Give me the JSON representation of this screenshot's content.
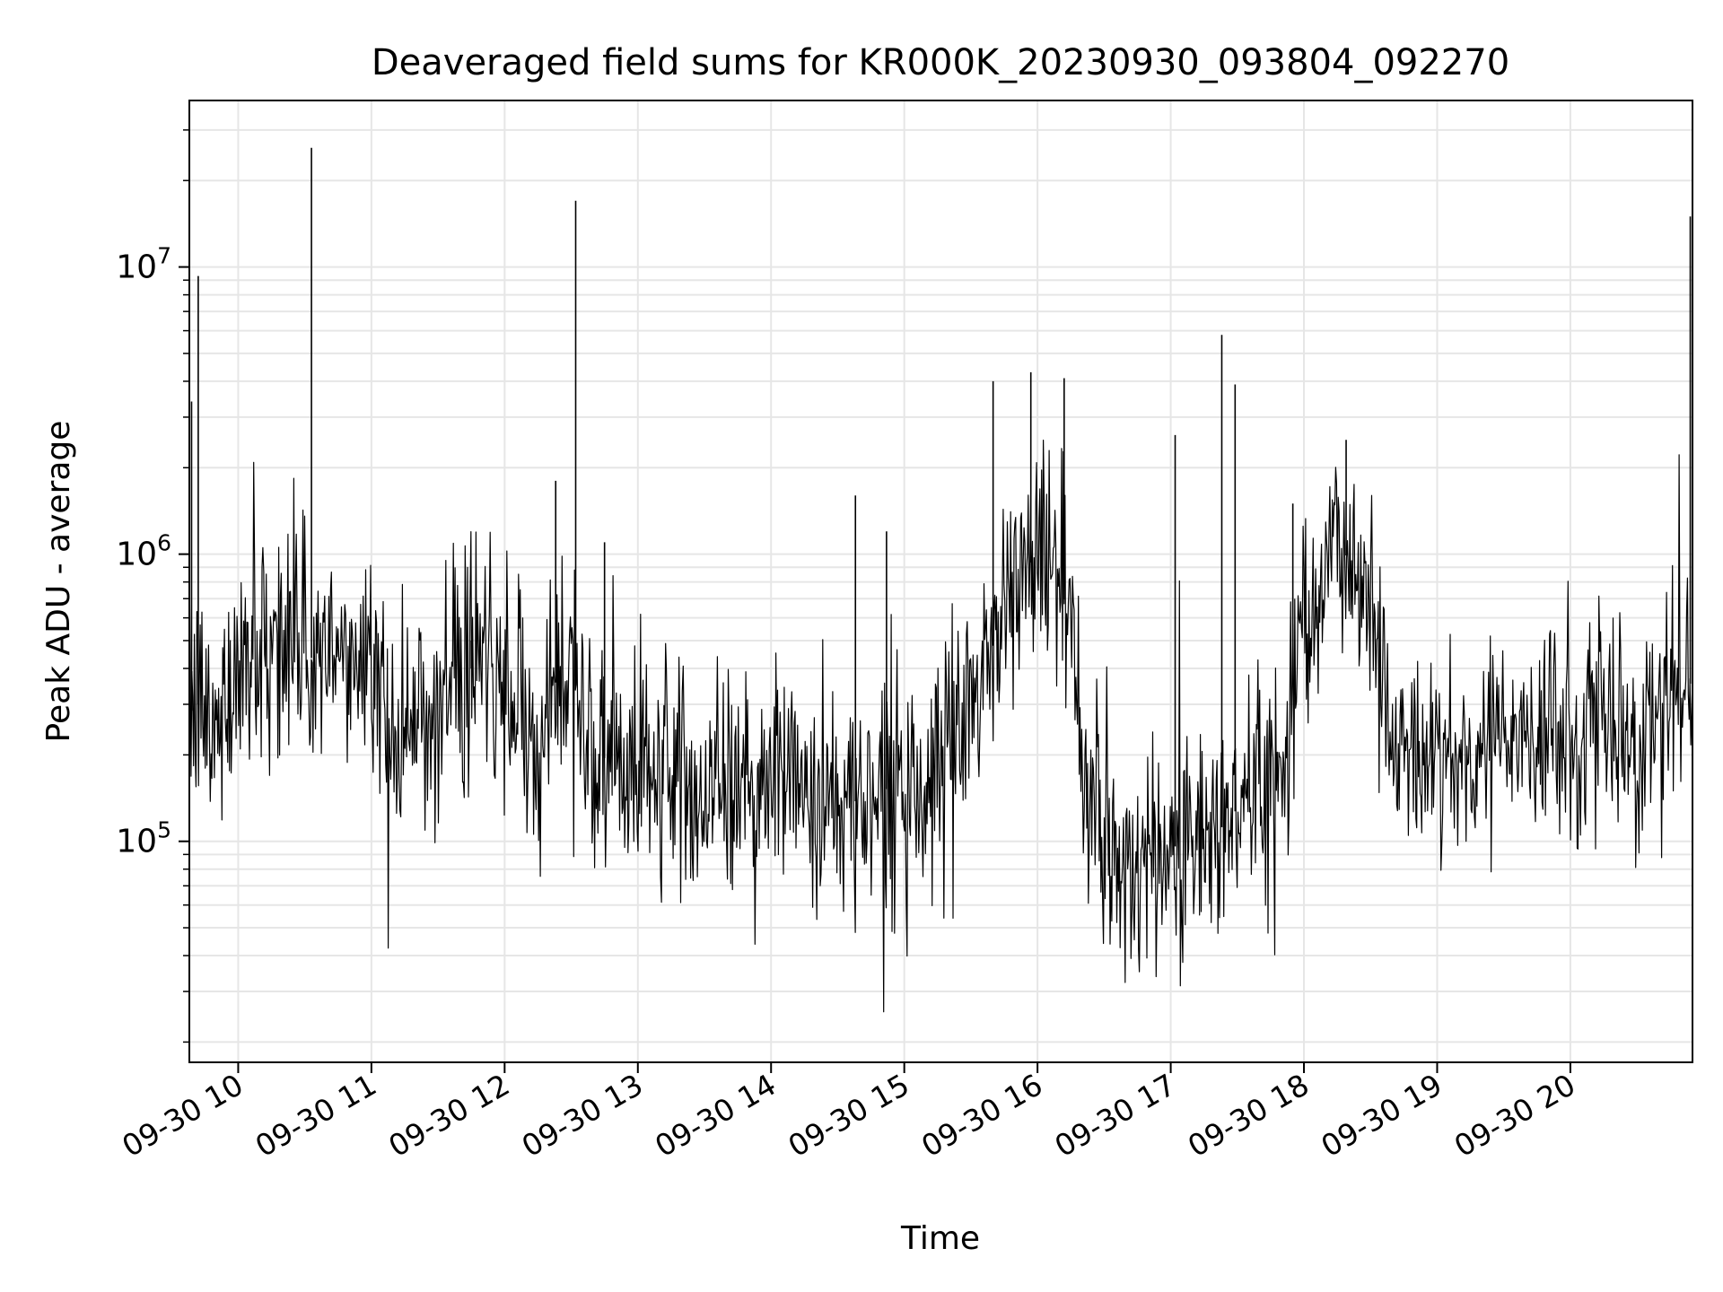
{
  "chart_data": {
    "type": "line",
    "title": "Deaveraged field sums for KR000K_20230930_093804_092270",
    "xlabel": "Time",
    "ylabel": "Peak ADU - average",
    "xscale": "time",
    "yscale": "log",
    "xlim": [
      "2023-09-30 09:38",
      "2023-09-30 20:55"
    ],
    "ylim": [
      17000,
      38000000
    ],
    "grid": true,
    "line_color": "#000000",
    "x_tick_labels": [
      "09-30 10",
      "09-30 11",
      "09-30 12",
      "09-30 13",
      "09-30 14",
      "09-30 15",
      "09-30 16",
      "09-30 17",
      "09-30 18",
      "09-30 19",
      "09-30 20"
    ],
    "x_tick_values": [
      "2023-09-30 10:00",
      "2023-09-30 11:00",
      "2023-09-30 12:00",
      "2023-09-30 13:00",
      "2023-09-30 14:00",
      "2023-09-30 15:00",
      "2023-09-30 16:00",
      "2023-09-30 17:00",
      "2023-09-30 18:00",
      "2023-09-30 19:00",
      "2023-09-30 20:00"
    ],
    "y_ticks": [
      {
        "value": 100000,
        "base": "10",
        "exp": "5"
      },
      {
        "value": 1000000,
        "base": "10",
        "exp": "6"
      },
      {
        "value": 10000000,
        "base": "10",
        "exp": "7"
      }
    ],
    "series": [
      {
        "x": [
          "2023-09-30 09:38",
          "2023-09-30 09:42",
          "2023-09-30 09:50",
          "2023-09-30 10:00",
          "2023-09-30 10:10",
          "2023-09-30 10:20",
          "2023-09-30 10:30",
          "2023-09-30 10:40",
          "2023-09-30 10:50",
          "2023-09-30 11:00",
          "2023-09-30 11:10",
          "2023-09-30 11:20",
          "2023-09-30 11:30",
          "2023-09-30 11:40",
          "2023-09-30 11:50",
          "2023-09-30 12:00",
          "2023-09-30 12:10",
          "2023-09-30 12:20",
          "2023-09-30 12:30",
          "2023-09-30 12:40",
          "2023-09-30 12:50",
          "2023-09-30 13:00",
          "2023-09-30 13:10",
          "2023-09-30 13:20",
          "2023-09-30 13:30",
          "2023-09-30 13:40",
          "2023-09-30 13:50",
          "2023-09-30 14:00",
          "2023-09-30 14:10",
          "2023-09-30 14:20",
          "2023-09-30 14:30",
          "2023-09-30 14:40",
          "2023-09-30 14:50",
          "2023-09-30 15:00",
          "2023-09-30 15:10",
          "2023-09-30 15:20",
          "2023-09-30 15:30",
          "2023-09-30 15:40",
          "2023-09-30 15:50",
          "2023-09-30 16:00",
          "2023-09-30 16:10",
          "2023-09-30 16:20",
          "2023-09-30 16:30",
          "2023-09-30 16:40",
          "2023-09-30 16:50",
          "2023-09-30 17:00",
          "2023-09-30 17:10",
          "2023-09-30 17:20",
          "2023-09-30 17:30",
          "2023-09-30 17:40",
          "2023-09-30 17:50",
          "2023-09-30 18:00",
          "2023-09-30 18:10",
          "2023-09-30 18:20",
          "2023-09-30 18:30",
          "2023-09-30 18:40",
          "2023-09-30 18:50",
          "2023-09-30 19:00",
          "2023-09-30 19:10",
          "2023-09-30 19:20",
          "2023-09-30 19:30",
          "2023-09-30 19:40",
          "2023-09-30 19:50",
          "2023-09-30 20:00",
          "2023-09-30 20:10",
          "2023-09-30 20:20",
          "2023-09-30 20:30",
          "2023-09-30 20:40",
          "2023-09-30 20:50",
          "2023-09-30 20:55"
        ],
        "y": [
          280000,
          300000,
          230000,
          450000,
          480000,
          520000,
          450000,
          400000,
          420000,
          480000,
          250000,
          270000,
          300000,
          380000,
          420000,
          330000,
          220000,
          340000,
          400000,
          200000,
          190000,
          170000,
          175000,
          160000,
          150000,
          160000,
          150000,
          170000,
          180000,
          140000,
          130000,
          140000,
          150000,
          160000,
          140000,
          200000,
          290000,
          480000,
          800000,
          1000000,
          950000,
          200000,
          100000,
          80000,
          85000,
          95000,
          100000,
          105000,
          130000,
          150000,
          180000,
          700000,
          900000,
          1000000,
          700000,
          230000,
          200000,
          190000,
          200000,
          230000,
          240000,
          230000,
          250000,
          240000,
          250000,
          240000,
          250000,
          270000,
          330000,
          360000
        ]
      }
    ],
    "spikes": [
      {
        "x": "2023-09-30 09:39",
        "y": 3400000
      },
      {
        "x": "2023-09-30 09:42",
        "y": 9300000
      },
      {
        "x": "2023-09-30 10:33",
        "y": 26000000
      },
      {
        "x": "2023-09-30 11:45",
        "y": 500000
      },
      {
        "x": "2023-09-30 12:23",
        "y": 1800000
      },
      {
        "x": "2023-09-30 12:32",
        "y": 17000000
      },
      {
        "x": "2023-09-30 12:45",
        "y": 1100000
      },
      {
        "x": "2023-09-30 14:38",
        "y": 1600000
      },
      {
        "x": "2023-09-30 14:52",
        "y": 1200000
      },
      {
        "x": "2023-09-30 15:40",
        "y": 4000000
      },
      {
        "x": "2023-09-30 15:57",
        "y": 4300000
      },
      {
        "x": "2023-09-30 16:12",
        "y": 4100000
      },
      {
        "x": "2023-09-30 17:02",
        "y": 2600000
      },
      {
        "x": "2023-09-30 17:23",
        "y": 5800000
      },
      {
        "x": "2023-09-30 17:29",
        "y": 3900000
      },
      {
        "x": "2023-09-30 17:55",
        "y": 1500000
      },
      {
        "x": "2023-09-30 18:19",
        "y": 2500000
      },
      {
        "x": "2023-09-30 20:54",
        "y": 15000000
      }
    ]
  }
}
